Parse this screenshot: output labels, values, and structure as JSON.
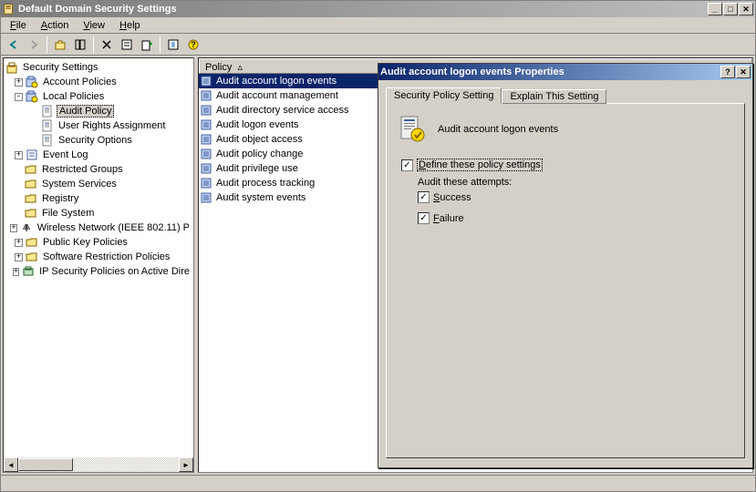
{
  "window": {
    "title": "Default Domain Security Settings",
    "menus": [
      "File",
      "Action",
      "View",
      "Help"
    ]
  },
  "tree": {
    "root": "Security Settings",
    "items": [
      {
        "label": "Account Policies",
        "exp": "+",
        "indent": 1,
        "icon": "policy"
      },
      {
        "label": "Local Policies",
        "exp": "-",
        "indent": 1,
        "icon": "policy"
      },
      {
        "label": "Audit Policy",
        "exp": "",
        "indent": 2,
        "icon": "page",
        "selected": true
      },
      {
        "label": "User Rights Assignment",
        "exp": "",
        "indent": 2,
        "icon": "page"
      },
      {
        "label": "Security Options",
        "exp": "",
        "indent": 2,
        "icon": "page"
      },
      {
        "label": "Event Log",
        "exp": "+",
        "indent": 1,
        "icon": "log"
      },
      {
        "label": "Restricted Groups",
        "exp": "",
        "indent": 1,
        "icon": "folder"
      },
      {
        "label": "System Services",
        "exp": "",
        "indent": 1,
        "icon": "folder"
      },
      {
        "label": "Registry",
        "exp": "",
        "indent": 1,
        "icon": "folder"
      },
      {
        "label": "File System",
        "exp": "",
        "indent": 1,
        "icon": "folder"
      },
      {
        "label": "Wireless Network (IEEE 802.11) P",
        "exp": "+",
        "indent": 1,
        "icon": "wifi"
      },
      {
        "label": "Public Key Policies",
        "exp": "+",
        "indent": 1,
        "icon": "folder"
      },
      {
        "label": "Software Restriction Policies",
        "exp": "+",
        "indent": 1,
        "icon": "folder"
      },
      {
        "label": "IP Security Policies on Active Dire",
        "exp": "+",
        "indent": 1,
        "icon": "ipsec"
      }
    ]
  },
  "list": {
    "column": "Policy",
    "rows": [
      {
        "label": "Audit account logon events",
        "selected": true
      },
      {
        "label": "Audit account management"
      },
      {
        "label": "Audit directory service access"
      },
      {
        "label": "Audit logon events"
      },
      {
        "label": "Audit object access"
      },
      {
        "label": "Audit policy change"
      },
      {
        "label": "Audit privilege use"
      },
      {
        "label": "Audit process tracking"
      },
      {
        "label": "Audit system events"
      }
    ]
  },
  "dialog": {
    "title": "Audit account logon events Properties",
    "tab_active": "Security Policy Setting",
    "tab_inactive": "Explain This Setting",
    "policy_name": "Audit account logon events",
    "define_label": "Define these policy settings",
    "define_checked": true,
    "attempts_label": "Audit these attempts:",
    "success_label": "Success",
    "success_checked": true,
    "failure_label": "Failure",
    "failure_checked": true
  }
}
